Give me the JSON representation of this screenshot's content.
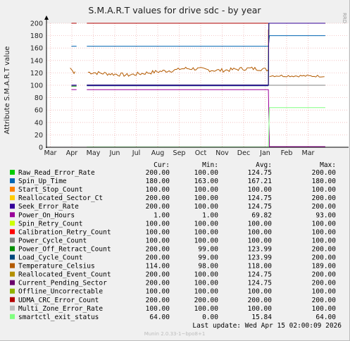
{
  "chart_data": {
    "type": "line",
    "title": "S.M.A.R.T values for drive sdc - by year",
    "ylabel": "Attribute S.M.A.R.T value",
    "ylim": [
      0,
      200
    ],
    "yticks": [
      0,
      20,
      40,
      60,
      80,
      100,
      120,
      140,
      160,
      180,
      200
    ],
    "months": [
      "Mar",
      "Apr",
      "May",
      "Jun",
      "Jul",
      "Aug",
      "Sep",
      "Oct",
      "Nov",
      "Dec",
      "Jan",
      "Feb",
      "Mar"
    ],
    "grid": true,
    "side_text": "RRDTOOL / TOBI OETIKER",
    "columns": [
      "Cur:",
      "Min:",
      "Avg:",
      "Max:"
    ],
    "series": [
      {
        "name": "Raw_Read_Error_Rate",
        "color": "#00cc00",
        "cur": "200.00",
        "min": "100.00",
        "avg": "124.75",
        "max": "200.00"
      },
      {
        "name": "Spin_Up_Time",
        "color": "#0066b3",
        "cur": "180.00",
        "min": "163.00",
        "avg": "167.21",
        "max": "180.00"
      },
      {
        "name": "Start_Stop_Count",
        "color": "#ff8000",
        "cur": "100.00",
        "min": "100.00",
        "avg": "100.00",
        "max": "100.00"
      },
      {
        "name": "Reallocated_Sector_Ct",
        "color": "#ffcc00",
        "cur": "200.00",
        "min": "100.00",
        "avg": "124.75",
        "max": "200.00"
      },
      {
        "name": "Seek_Error_Rate",
        "color": "#330099",
        "cur": "200.00",
        "min": "100.00",
        "avg": "124.75",
        "max": "200.00"
      },
      {
        "name": "Power_On_Hours",
        "color": "#990099",
        "cur": "1.00",
        "min": "1.00",
        "avg": "69.82",
        "max": "93.00"
      },
      {
        "name": "Spin_Retry_Count",
        "color": "#ccff00",
        "cur": "100.00",
        "min": "100.00",
        "avg": "100.00",
        "max": "100.00"
      },
      {
        "name": "Calibration_Retry_Count",
        "color": "#ff0000",
        "cur": "100.00",
        "min": "100.00",
        "avg": "100.00",
        "max": "100.00"
      },
      {
        "name": "Power_Cycle_Count",
        "color": "#808080",
        "cur": "100.00",
        "min": "100.00",
        "avg": "100.00",
        "max": "100.00"
      },
      {
        "name": "Power_Off_Retract_Count",
        "color": "#008f00",
        "cur": "200.00",
        "min": "99.00",
        "avg": "123.99",
        "max": "200.00"
      },
      {
        "name": "Load_Cycle_Count",
        "color": "#00487d",
        "cur": "200.00",
        "min": "99.00",
        "avg": "123.99",
        "max": "200.00"
      },
      {
        "name": "Temperature_Celsius",
        "color": "#b35a00",
        "cur": "114.00",
        "min": "98.00",
        "avg": "118.00",
        "max": "189.00"
      },
      {
        "name": "Reallocated_Event_Count",
        "color": "#b38f00",
        "cur": "200.00",
        "min": "100.00",
        "avg": "124.75",
        "max": "200.00"
      },
      {
        "name": "Current_Pending_Sector",
        "color": "#6b006b",
        "cur": "200.00",
        "min": "100.00",
        "avg": "124.75",
        "max": "200.00"
      },
      {
        "name": "Offline_Uncorrectable",
        "color": "#8fb300",
        "cur": "100.00",
        "min": "100.00",
        "avg": "100.00",
        "max": "100.00"
      },
      {
        "name": "UDMA_CRC_Error_Count",
        "color": "#b30000",
        "cur": "200.00",
        "min": "200.00",
        "avg": "200.00",
        "max": "200.00"
      },
      {
        "name": "Multi_Zone_Error_Rate",
        "color": "#bebebe",
        "cur": "100.00",
        "min": "100.00",
        "avg": "100.00",
        "max": "100.00"
      },
      {
        "name": "smartctl_exit_status",
        "color": "#80ff80",
        "cur": "64.00",
        "min": "0.00",
        "avg": "15.84",
        "max": "64.00"
      }
    ],
    "last_update": "Last update:  Wed Apr 15 02:00:09 2026",
    "footer": "Munin 2.0.33-1~bpo8+1"
  }
}
